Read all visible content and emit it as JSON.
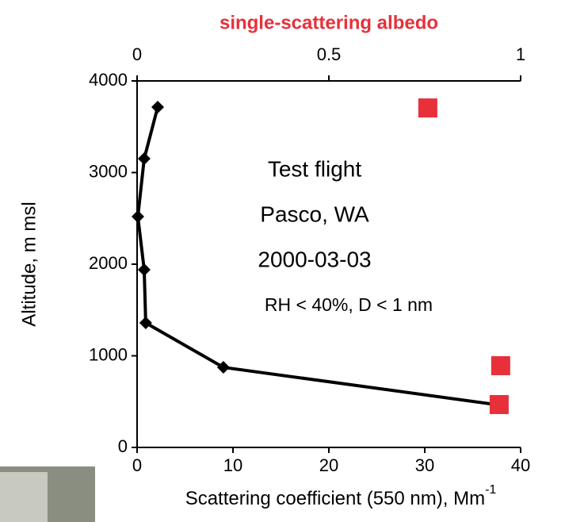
{
  "chart_data": {
    "type": "scatter",
    "title": "single-scattering albedo",
    "x_label": "Scattering coefficient (550 nm), Mm",
    "x_label_superscript": "-1",
    "y_label": "Altitude, m msl",
    "annotations": [
      "Test flight",
      "Pasco, WA",
      "2000-03-03",
      "RH < 40%, D < 1 nm"
    ],
    "xlim": [
      0,
      40
    ],
    "xticks": [
      0,
      10,
      20,
      30,
      40
    ],
    "x2lim": [
      0,
      1
    ],
    "x2ticks": [
      0,
      0.5,
      1
    ],
    "ylim": [
      0,
      4000
    ],
    "yticks": [
      0,
      1000,
      2000,
      3000,
      4000
    ],
    "series": [
      {
        "color": "#000000",
        "marker": "diamond",
        "line": true,
        "x": [
          2.15,
          0.74,
          0.08,
          0.74,
          0.9,
          9.0,
          37.4
        ],
        "values": [
          3714,
          3151,
          2519,
          1939,
          1359,
          874,
          468
        ]
      },
      {
        "color": "#e8303a",
        "marker": "square",
        "line": false,
        "axis": "x2",
        "x": [
          0.758,
          0.948,
          0.944
        ],
        "values": [
          3705,
          892,
          468
        ]
      }
    ]
  }
}
